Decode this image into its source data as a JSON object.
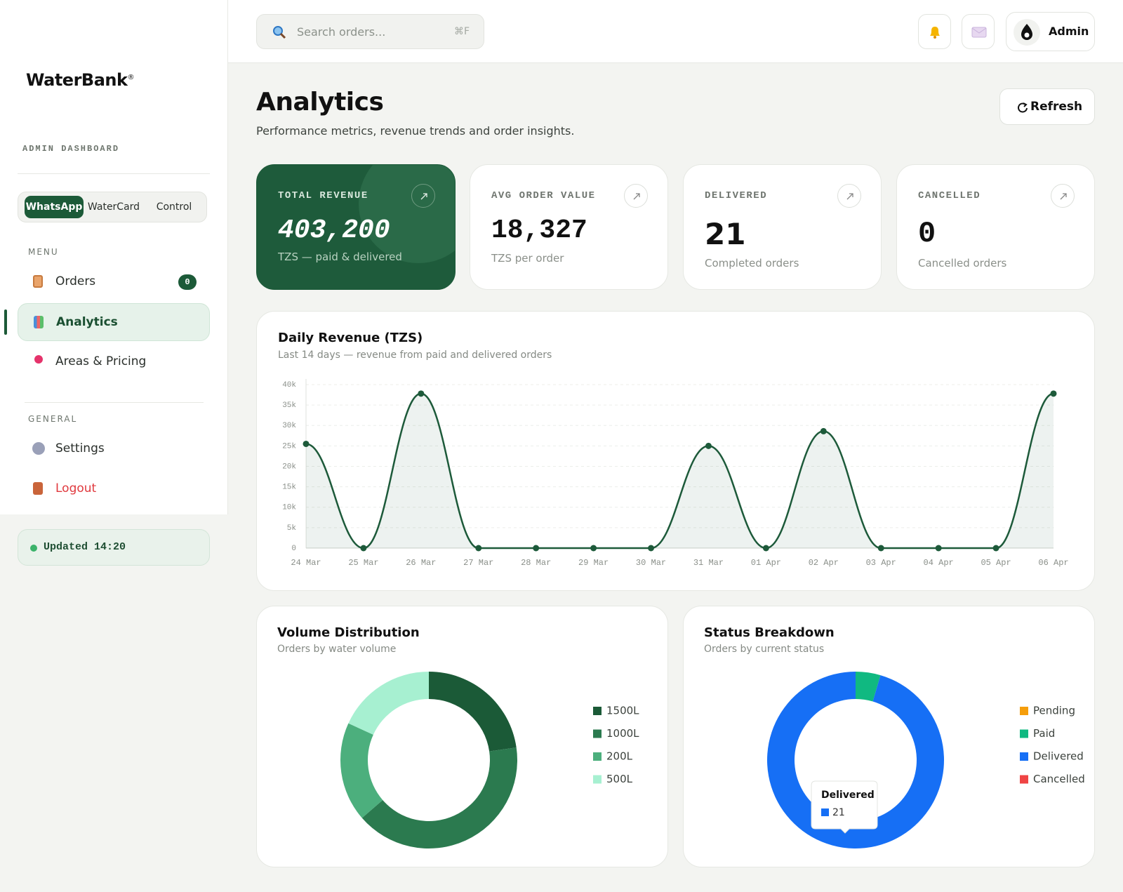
{
  "sidebar": {
    "logo": "WaterBank",
    "logo_mark": "®",
    "section_label": "ADMIN DASHBOARD",
    "tabs": [
      "WhatsApp",
      "WaterCard",
      "Control"
    ],
    "menu_label": "MENU",
    "menu": [
      {
        "label": "Orders",
        "badge": "0"
      },
      {
        "label": "Analytics"
      },
      {
        "label": "Areas & Pricing"
      }
    ],
    "general_label": "GENERAL",
    "general": [
      {
        "label": "Settings"
      },
      {
        "label": "Logout"
      }
    ],
    "status": "Updated 14:20"
  },
  "topbar": {
    "search_placeholder": "Search orders...",
    "shortcut": "⌘F",
    "user": "Admin"
  },
  "header": {
    "title": "Analytics",
    "subtitle": "Performance metrics, revenue trends and order insights.",
    "refresh": "Refresh"
  },
  "kpis": [
    {
      "label": "TOTAL REVENUE",
      "value": "403,200",
      "note": "TZS — paid & delivered"
    },
    {
      "label": "AVG ORDER VALUE",
      "value": "18,327",
      "note": "TZS per order"
    },
    {
      "label": "DELIVERED",
      "value": "21",
      "note": "Completed orders"
    },
    {
      "label": "CANCELLED",
      "value": "0",
      "note": "Cancelled orders"
    }
  ],
  "chart_data": [
    {
      "type": "line",
      "title": "Daily Revenue (TZS)",
      "subtitle": "Last 14 days — revenue from paid and delivered orders",
      "categories": [
        "24 Mar",
        "25 Mar",
        "26 Mar",
        "27 Mar",
        "28 Mar",
        "29 Mar",
        "30 Mar",
        "31 Mar",
        "01 Apr",
        "02 Apr",
        "03 Apr",
        "04 Apr",
        "05 Apr",
        "06 Apr"
      ],
      "values": [
        25500,
        0,
        37800,
        0,
        0,
        0,
        0,
        25000,
        0,
        28600,
        0,
        0,
        0,
        37800
      ],
      "color": "#1d5a3a",
      "ylim": [
        0,
        40000
      ],
      "yticks": [
        0,
        {
          "value": 5000,
          "label": "5k"
        },
        {
          "value": 10000,
          "label": "10k"
        },
        {
          "value": 15000,
          "label": "15k"
        },
        {
          "value": 20000,
          "label": "20k"
        },
        {
          "value": 25000,
          "label": "25k"
        },
        {
          "value": 30000,
          "label": "30k"
        },
        {
          "value": 35000,
          "label": "35k"
        },
        {
          "value": 40000,
          "label": "40k"
        }
      ],
      "grid": true
    },
    {
      "type": "donut",
      "title": "Volume Distribution",
      "subtitle": "Orders by water volume",
      "categories": [
        "1500L",
        "1000L",
        "200L",
        "500L"
      ],
      "values": [
        5,
        9,
        4,
        4
      ],
      "colors": [
        "#1b5a37",
        "#2b7a4f",
        "#4caf7d",
        "#a7f0d1"
      ]
    },
    {
      "type": "donut",
      "title": "Status Breakdown",
      "subtitle": "Orders by current status",
      "categories": [
        "Pending",
        "Paid",
        "Delivered",
        "Cancelled"
      ],
      "values": [
        0,
        1,
        21,
        0
      ],
      "colors": [
        "#f59e0b",
        "#10b981",
        "#166ff5",
        "#ef4444"
      ],
      "tooltip": "Delivered"
    }
  ]
}
